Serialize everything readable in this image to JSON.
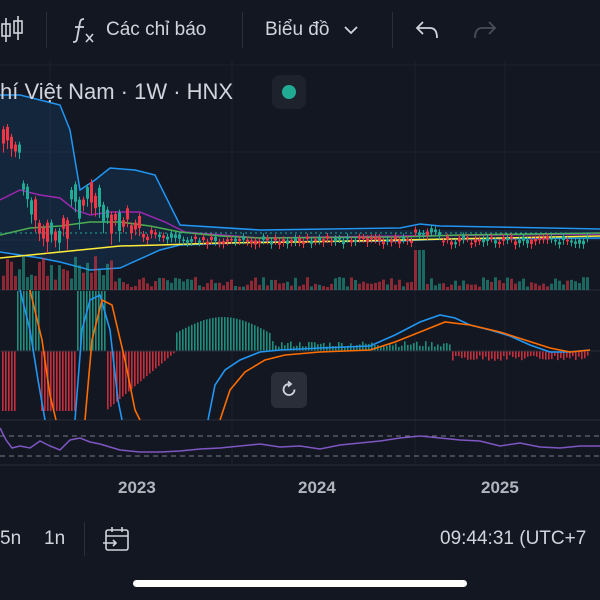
{
  "toolbar": {
    "indicators_label": "Các chỉ báo",
    "chart_type_label": "Biểu đồ",
    "icons": [
      "candlestick-icon",
      "function-icon",
      "chevron-down-icon",
      "undo-icon",
      "redo-icon"
    ]
  },
  "legend": {
    "symbol_text": "hí Việt Nam · 1W · HNX",
    "status_color": "#22ab94"
  },
  "time_axis": {
    "years": [
      "2023",
      "2024",
      "2025"
    ]
  },
  "bottom_bar": {
    "interval_a": "5n",
    "interval_b": "1n",
    "clock": "09:44:31 (UTC+7"
  },
  "colors": {
    "background": "#131722",
    "up": "#22ab94",
    "down": "#f23645",
    "bollinger": "#2196f3",
    "ma_purple": "#9c27b0",
    "ma_green": "#4caf50",
    "ma_yellow": "#ffeb3b",
    "macd": "#2196f3",
    "signal": "#ff6d00",
    "rsi": "#7e57c2"
  }
}
